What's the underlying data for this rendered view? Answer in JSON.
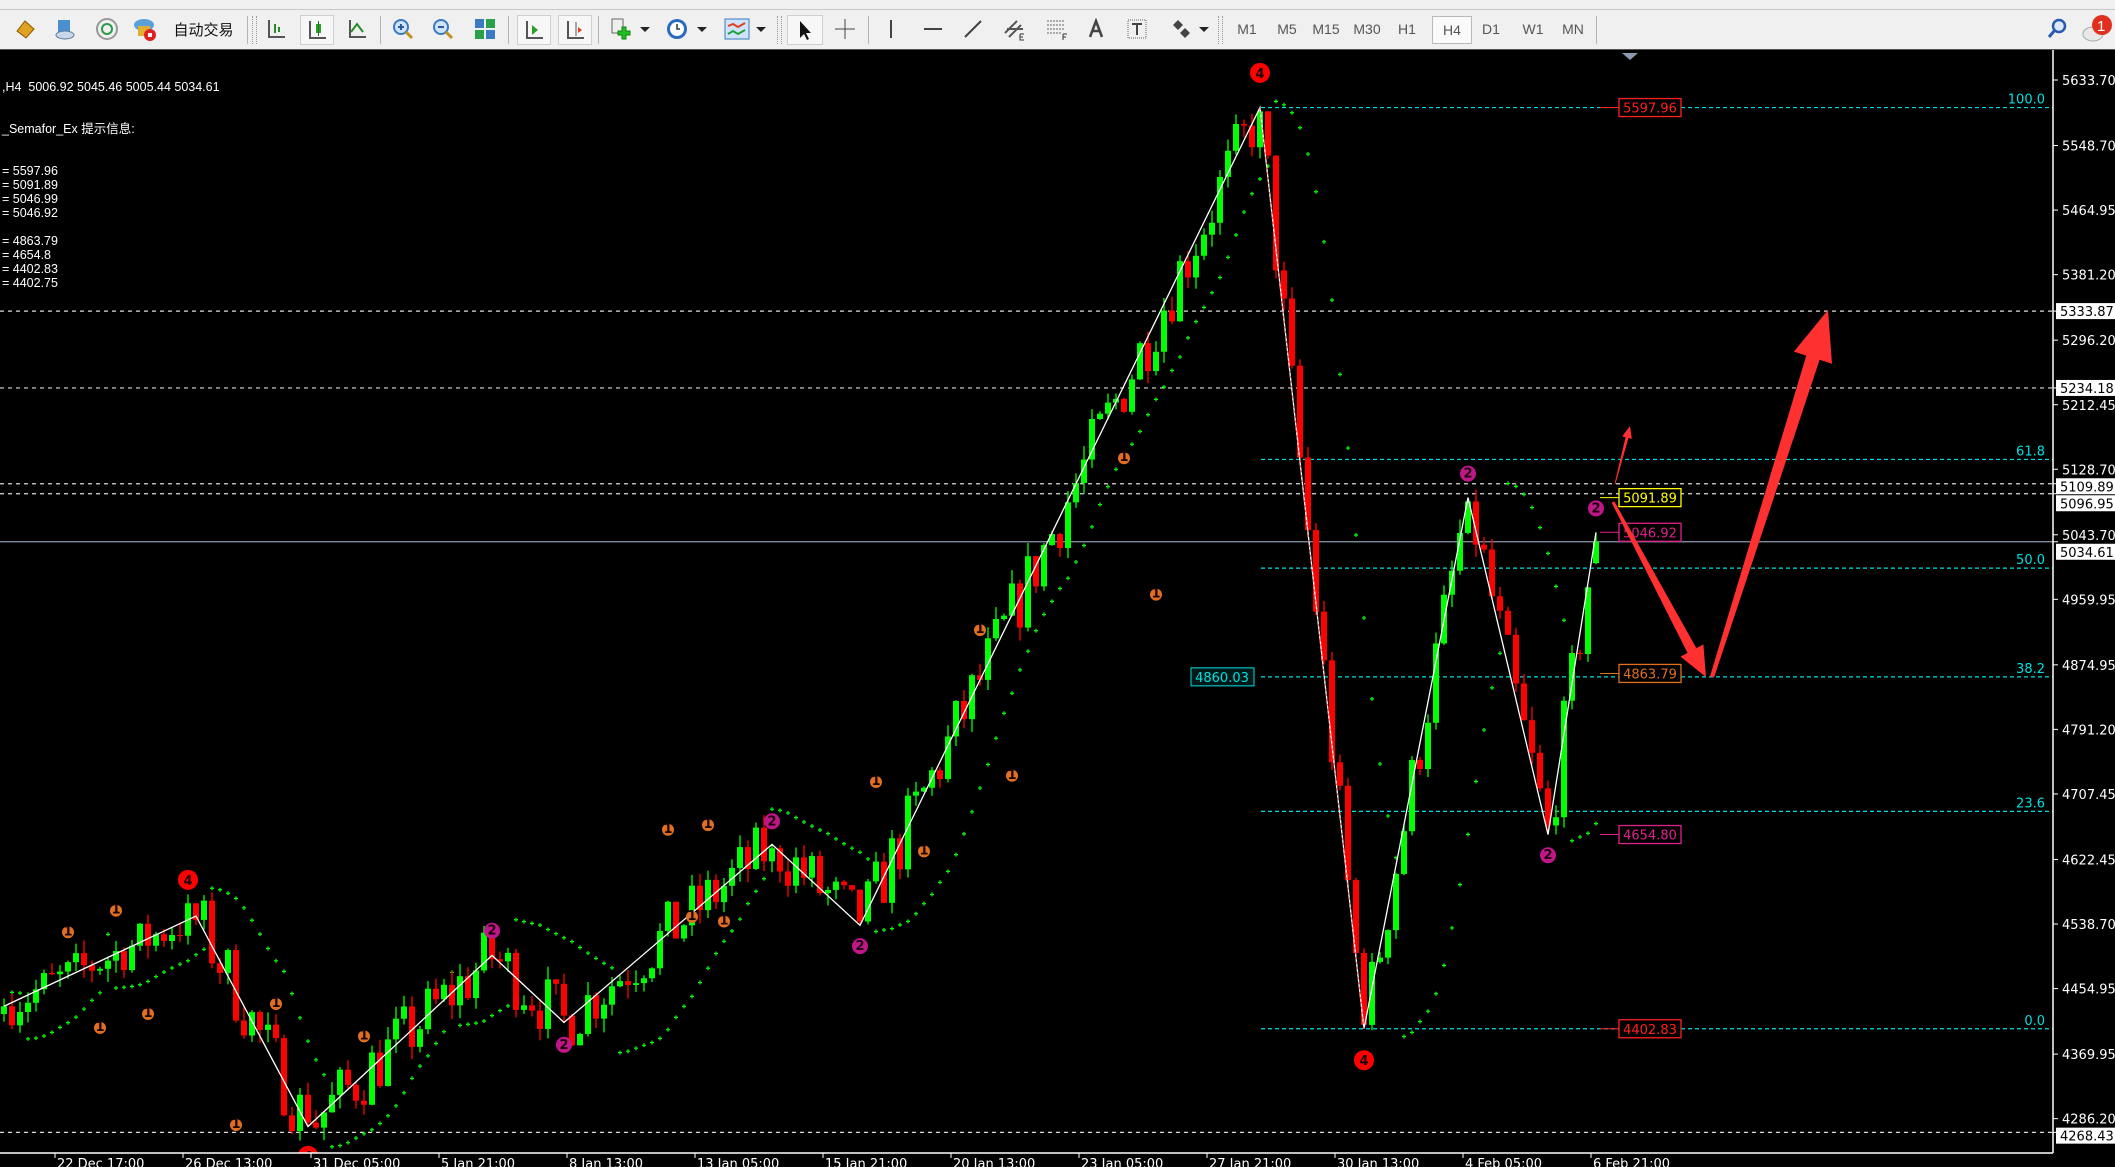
{
  "toolbar": {
    "auto_trade_label": "自动交易",
    "timeframes": [
      "M1",
      "M5",
      "M15",
      "M30",
      "H1",
      "H4",
      "D1",
      "W1",
      "MN"
    ],
    "selected_timeframe": "H4",
    "notification_count": "1"
  },
  "info_panel": {
    "header": ",H4  5006.92 5045.46 5005.44 5034.61",
    "indicator_title": "_Semafor_Ex 提示信息:",
    "lines": [
      "= 5597.96",
      "= 5091.89",
      "= 5046.99",
      "= 5046.92",
      "",
      "= 4863.79",
      "= 4654.8",
      "= 4402.83",
      "= 4402.75"
    ]
  },
  "last_bar_ohlc": {
    "open": 5006.92,
    "high": 5045.46,
    "low": 5005.44,
    "close": 5034.61
  },
  "price_axis": {
    "ticks": [
      "5633.70",
      "5548.70",
      "5464.95",
      "5381.20",
      "5296.20",
      "5212.45",
      "5128.70",
      "5043.70",
      "4959.95",
      "4874.95",
      "4791.20",
      "4707.45",
      "4622.45",
      "4538.70",
      "4454.95",
      "4369.95",
      "4286.20"
    ],
    "highlighted": [
      "5333.87",
      "5234.18",
      "5109.89",
      "5096.95",
      "5034.61",
      "4268.43"
    ],
    "bid": "5034.61"
  },
  "time_axis": {
    "labels": [
      "22 Dec 17:00",
      "26 Dec 13:00",
      "31 Dec 05:00",
      "5 Jan 21:00",
      "8 Jan 13:00",
      "13 Jan 05:00",
      "15 Jan 21:00",
      "20 Jan 13:00",
      "23 Jan 05:00",
      "27 Jan 21:00",
      "30 Jan 13:00",
      "4 Feb 05:00",
      "6 Feb 21:00"
    ]
  },
  "horizontal_lines": [
    "5333.87",
    "5234.18",
    "5109.89",
    "5096.95",
    "4268.43"
  ],
  "fibonacci": {
    "high": 5597.96,
    "low": 4402.83,
    "levels": [
      {
        "label": "100.0",
        "value": 1.0
      },
      {
        "label": "61.8",
        "value": 0.618
      },
      {
        "label": "50.0",
        "value": 0.5
      },
      {
        "label": "38.2",
        "value": 0.382
      },
      {
        "label": "23.6",
        "value": 0.236
      },
      {
        "label": "0.0",
        "value": 0.0
      }
    ],
    "level_price_label": "4860.03"
  },
  "price_boxes": [
    {
      "text": "5597.96",
      "color": "#ff2020"
    },
    {
      "text": "5091.89",
      "color": "#ffff00"
    },
    {
      "text": "5046.92",
      "color": "#e0208a"
    },
    {
      "text": "4863.79",
      "color": "#e07020"
    },
    {
      "text": "4654.80",
      "color": "#e0208a"
    },
    {
      "text": "4402.83",
      "color": "#ff2020"
    }
  ],
  "zigzag_pivots": [
    {
      "bar": 0,
      "price": 4432
    },
    {
      "bar": 24,
      "price": 4549
    },
    {
      "bar": 38,
      "price": 4276
    },
    {
      "bar": 61,
      "price": 4498
    },
    {
      "bar": 70,
      "price": 4411
    },
    {
      "bar": 96,
      "price": 4642
    },
    {
      "bar": 107,
      "price": 4537
    },
    {
      "bar": 157,
      "price": 5597.96
    },
    {
      "bar": 170,
      "price": 4402.83
    },
    {
      "bar": 183,
      "price": 5091.89
    },
    {
      "bar": 193,
      "price": 4654.8
    },
    {
      "bar": 199,
      "price": 5046.92
    }
  ],
  "semafor_markers": [
    {
      "label": "4",
      "bar": 157,
      "price": 5643
    },
    {
      "label": "4",
      "bar": 23,
      "price": 4596
    },
    {
      "label": "4",
      "bar": 170,
      "price": 4362
    },
    {
      "label": "4",
      "bar": 38,
      "price": 4238
    },
    {
      "label": "2",
      "bar": 61,
      "price": 4530
    },
    {
      "label": "2",
      "bar": 70,
      "price": 4382
    },
    {
      "label": "2",
      "bar": 96,
      "price": 4672
    },
    {
      "label": "2",
      "bar": 107,
      "price": 4510
    },
    {
      "label": "2",
      "bar": 183,
      "price": 5123
    },
    {
      "label": "2",
      "bar": 199,
      "price": 5078
    },
    {
      "label": "2",
      "bar": 193,
      "price": 4628
    },
    {
      "label": "1",
      "bar": 8,
      "price": 4528
    },
    {
      "label": "1",
      "bar": 14,
      "price": 4556
    },
    {
      "label": "1",
      "bar": 12,
      "price": 4404
    },
    {
      "label": "1",
      "bar": 18,
      "price": 4422
    },
    {
      "label": "1",
      "bar": 34,
      "price": 4435
    },
    {
      "label": "1",
      "bar": 29,
      "price": 4278
    },
    {
      "label": "1",
      "bar": 45,
      "price": 4393
    },
    {
      "label": "1",
      "bar": 83,
      "price": 4661
    },
    {
      "label": "1",
      "bar": 88,
      "price": 4667
    },
    {
      "label": "1",
      "bar": 86,
      "price": 4548
    },
    {
      "label": "1",
      "bar": 90,
      "price": 4542
    },
    {
      "label": "1",
      "bar": 109,
      "price": 4723
    },
    {
      "label": "1",
      "bar": 115,
      "price": 4633
    },
    {
      "label": "1",
      "bar": 122,
      "price": 4920
    },
    {
      "label": "1",
      "bar": 126,
      "price": 4731
    },
    {
      "label": "1",
      "bar": 140,
      "price": 5143
    },
    {
      "label": "1",
      "bar": 144,
      "price": 4966
    }
  ],
  "colors": {
    "bull": "#00ff00",
    "bear": "#ff0000",
    "fib": "#00e0e0",
    "sar": "#00ff00",
    "semafor_4": "#ff0000",
    "semafor_2": "#c0168a",
    "semafor_1": "#e07020",
    "arrow": "#ff3030"
  }
}
